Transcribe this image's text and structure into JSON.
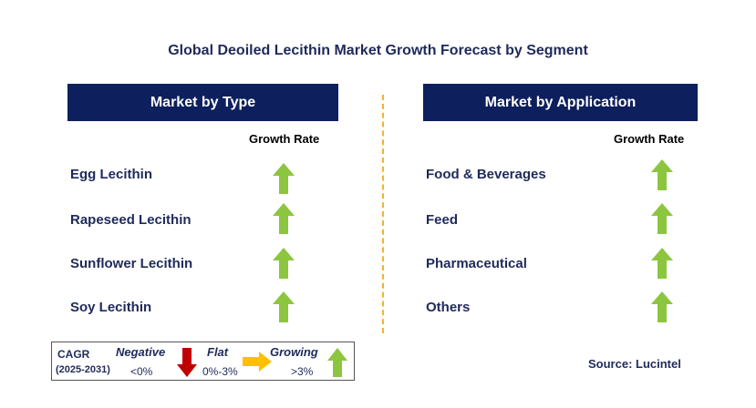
{
  "title": "Global Deoiled Lecithin Market Growth Forecast by Segment",
  "colors": {
    "header_bg": "#0d1f5c",
    "text": "#1f2a5a",
    "growing": "#8cc63f",
    "negative": "#c00000",
    "flat": "#ffc000",
    "divider": "#f2b233"
  },
  "left_panel": {
    "header": "Market by Type",
    "col_label": "Growth Rate",
    "rows": [
      {
        "label": "Egg Lecithin",
        "trend": "growing"
      },
      {
        "label": "Rapeseed Lecithin",
        "trend": "growing"
      },
      {
        "label": "Sunflower Lecithin",
        "trend": "growing"
      },
      {
        "label": "Soy Lecithin",
        "trend": "growing"
      }
    ]
  },
  "right_panel": {
    "header": "Market by Application",
    "col_label": "Growth Rate",
    "rows": [
      {
        "label": "Food & Beverages",
        "trend": "growing"
      },
      {
        "label": "Feed",
        "trend": "growing"
      },
      {
        "label": "Pharmaceutical",
        "trend": "growing"
      },
      {
        "label": "Others",
        "trend": "growing"
      }
    ]
  },
  "legend": {
    "cagr": "CAGR",
    "period": "(2025-2031)",
    "negative_label": "Negative",
    "negative_value": "<0%",
    "flat_label": "Flat",
    "flat_value": "0%-3%",
    "growing_label": "Growing",
    "growing_value": ">3%"
  },
  "source": "Source: Lucintel"
}
